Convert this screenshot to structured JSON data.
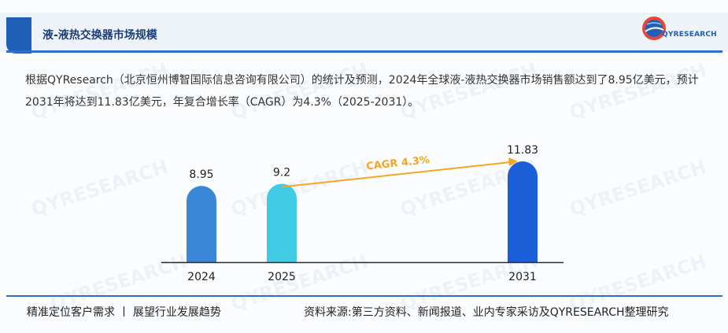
{
  "header": {
    "title": "液-液热交换器市场规模",
    "logo_text": "QYRESEARCH"
  },
  "watermark_text": "QYRESEARCH",
  "intro_text": "根据QYResearch（北京恒州博智国际信息咨询有限公司）的统计及预测，2024年全球液-液热交换器市场销售额达到了8.95亿美元，预计2031年将达到11.83亿美元，年复合增长率（CAGR）为4.3%（2025-2031）。",
  "chart_data": {
    "type": "bar",
    "categories": [
      "2024",
      "2025",
      "2031"
    ],
    "values": [
      8.95,
      9.2,
      11.83
    ],
    "data_labels": [
      "8.95",
      "9.2",
      "11.83"
    ],
    "colors": [
      "#3a87d8",
      "#3fcbe4",
      "#1a5fd8"
    ],
    "annotation": "CAGR 4.3%",
    "annotation_color": "#f5a623",
    "title": "",
    "xlabel": "",
    "ylabel": ""
  },
  "footer": {
    "left": "精准定位客户需求 丨 展望行业发展趋势",
    "right": "资料来源:第三方资料、新闻报道、业内专家采访及QYRESEARCH整理研究"
  }
}
